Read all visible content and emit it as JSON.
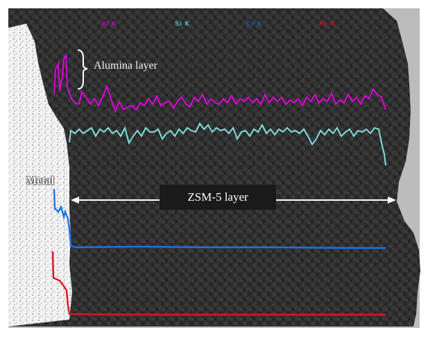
{
  "legend": {
    "al": "Al K",
    "si": "Si K",
    "cr": "Cr K",
    "fe": "Fe K"
  },
  "annotations": {
    "alumina_layer": "Alumina layer",
    "metal": "Metal",
    "zsm5_layer": "ZSM-5 layer"
  },
  "colors": {
    "background_grey": "#bdbdbd",
    "zeolite_dark": "#2b2b2b",
    "metal_white": "#f4f4f4",
    "al_trace": "#e000e0",
    "si_trace": "#7fe0e0",
    "cr_trace": "#1a73e8",
    "fe_trace": "#e0141e"
  }
}
